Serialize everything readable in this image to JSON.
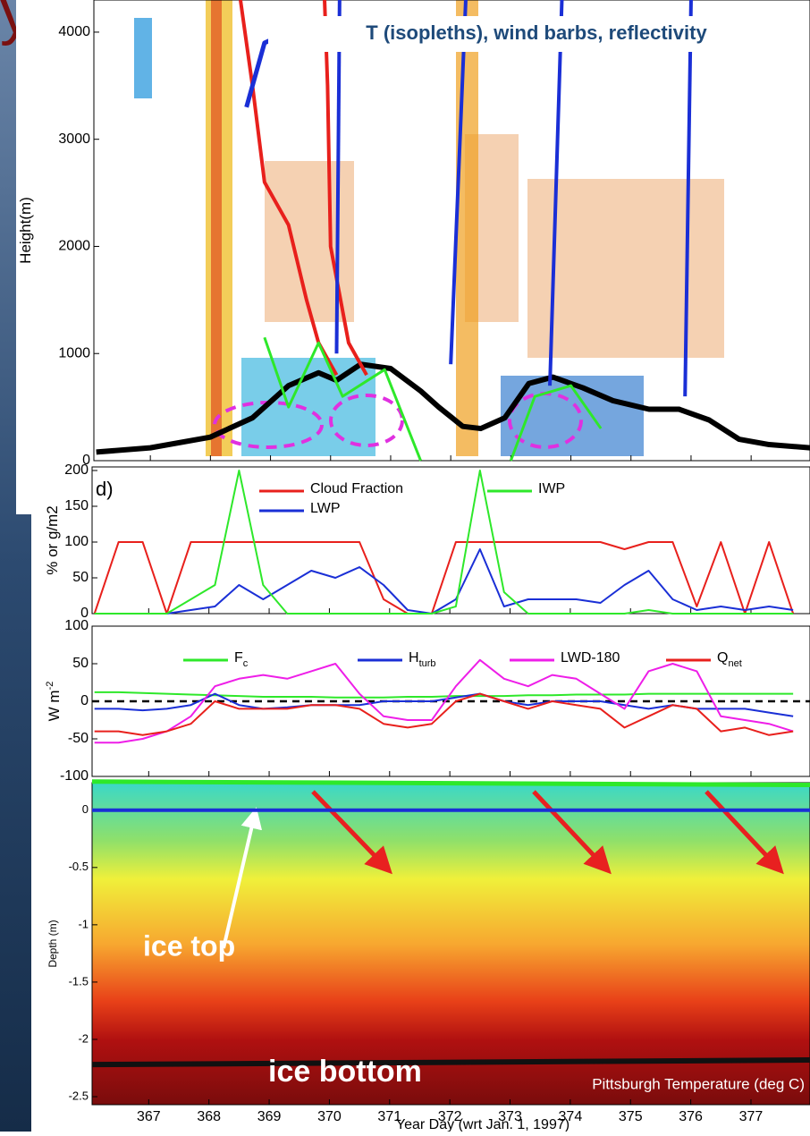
{
  "chart_data": [
    {
      "type": "line",
      "title": "T (isopleths), wind barbs, reflectivity",
      "y_label": "Height(m)",
      "xlim": [
        366.06,
        377.98
      ],
      "xticks": [
        367,
        368,
        369,
        370,
        371,
        372,
        373,
        374,
        375,
        376,
        377
      ],
      "ylim": [
        0,
        4300
      ],
      "yticks": [
        0,
        1000,
        2000,
        3000,
        4000
      ],
      "series": [
        {
          "color": "#000000",
          "width": 6,
          "x": [
            366.1,
            367,
            368,
            368.7,
            369.3,
            369.8,
            370.1,
            370.5,
            371,
            371.5,
            371.8,
            372.2,
            372.5,
            372.9,
            373.3,
            373.7,
            374.2,
            374.7,
            375.3,
            375.8,
            376.3,
            376.8,
            377.3,
            377.98
          ],
          "values": [
            80,
            120,
            220,
            400,
            700,
            820,
            750,
            900,
            860,
            650,
            500,
            320,
            300,
            400,
            720,
            780,
            680,
            560,
            480,
            480,
            380,
            200,
            150,
            120
          ]
        },
        {
          "color": "#e8201c",
          "width": 4,
          "x": [
            368.5,
            368.7,
            368.9,
            369.3,
            369.6,
            369.8,
            370.1
          ],
          "values": [
            4300,
            3500,
            2600,
            2200,
            1500,
            1100,
            800
          ]
        },
        {
          "color": "#e8201c",
          "width": 4,
          "x": [
            369.9,
            369.95,
            370.0,
            370.3,
            370.6
          ],
          "values": [
            4300,
            3500,
            2000,
            1100,
            800
          ]
        },
        {
          "color": "#1a2fd6",
          "width": 5,
          "x": [
            368.6,
            368.9,
            369.5
          ],
          "values": [
            3300,
            3900,
            4050
          ]
        },
        {
          "color": "#1a2fd6",
          "width": 4,
          "x": [
            370.15,
            370.1
          ],
          "values": [
            4300,
            1000
          ]
        },
        {
          "color": "#1a2fd6",
          "width": 4,
          "x": [
            372.25,
            372.0
          ],
          "values": [
            4300,
            900
          ]
        },
        {
          "color": "#1a2fd6",
          "width": 4,
          "x": [
            373.85,
            373.65
          ],
          "values": [
            4300,
            700
          ]
        },
        {
          "color": "#1a2fd6",
          "width": 4,
          "x": [
            376.0,
            375.9
          ],
          "values": [
            4300,
            600
          ]
        },
        {
          "color": "#2ee82a",
          "width": 3,
          "x": [
            368.9,
            369.3,
            369.8,
            370.2,
            370.9,
            371.5
          ],
          "values": [
            1150,
            500,
            1100,
            600,
            850,
            0
          ]
        },
        {
          "color": "#2ee82a",
          "width": 3,
          "x": [
            373.0,
            373.4,
            374.0,
            374.5
          ],
          "values": [
            0,
            600,
            700,
            300
          ]
        }
      ]
    },
    {
      "type": "line",
      "panel_label": "d)",
      "y_label": "% or g/m2",
      "xlim": [
        366.06,
        377.98
      ],
      "xticks": [
        367,
        368,
        369,
        370,
        371,
        372,
        373,
        374,
        375,
        376,
        377
      ],
      "ylim": [
        0,
        205
      ],
      "yticks": [
        0,
        50,
        100,
        150,
        200
      ],
      "x": [
        366.1,
        366.5,
        366.9,
        367.3,
        367.7,
        368.1,
        368.5,
        368.9,
        369.3,
        369.7,
        370.1,
        370.5,
        370.9,
        371.3,
        371.7,
        372.1,
        372.5,
        372.9,
        373.3,
        373.7,
        374.1,
        374.5,
        374.9,
        375.3,
        375.7,
        376.1,
        376.5,
        376.9,
        377.3,
        377.7
      ],
      "series": [
        {
          "name": "Cloud Fraction",
          "color": "#e8201c",
          "values": [
            0,
            100,
            100,
            0,
            100,
            100,
            100,
            100,
            100,
            100,
            100,
            100,
            20,
            0,
            0,
            100,
            100,
            100,
            100,
            100,
            100,
            100,
            90,
            100,
            100,
            10,
            100,
            0,
            100,
            0
          ]
        },
        {
          "name": "LWP",
          "color": "#1a2fd6",
          "values": [
            0,
            0,
            0,
            0,
            5,
            10,
            40,
            20,
            40,
            60,
            50,
            65,
            40,
            5,
            0,
            20,
            90,
            10,
            20,
            20,
            20,
            15,
            40,
            60,
            20,
            5,
            10,
            5,
            10,
            5
          ]
        },
        {
          "name": "IWP",
          "color": "#2ee82a",
          "values": [
            0,
            0,
            0,
            0,
            20,
            40,
            200,
            40,
            0,
            0,
            0,
            0,
            0,
            0,
            0,
            10,
            200,
            30,
            0,
            0,
            0,
            0,
            0,
            5,
            0,
            0,
            0,
            0,
            0,
            0
          ]
        }
      ]
    },
    {
      "type": "line",
      "y_label": "W m",
      "y_label_sup": "-2",
      "xlim": [
        366.06,
        377.98
      ],
      "xticks": [
        367,
        368,
        369,
        370,
        371,
        372,
        373,
        374,
        375,
        376,
        377
      ],
      "ylim": [
        -100,
        100
      ],
      "yticks": [
        -100,
        -50,
        0,
        50,
        100
      ],
      "x": [
        366.1,
        366.5,
        366.9,
        367.3,
        367.7,
        368.1,
        368.5,
        368.9,
        369.3,
        369.7,
        370.1,
        370.5,
        370.9,
        371.3,
        371.7,
        372.1,
        372.5,
        372.9,
        373.3,
        373.7,
        374.1,
        374.5,
        374.9,
        375.3,
        375.7,
        376.1,
        376.5,
        376.9,
        377.3,
        377.7
      ],
      "series": [
        {
          "name": "F",
          "sub": "c",
          "color": "#2ee82a",
          "values": [
            12,
            12,
            11,
            10,
            9,
            8,
            7,
            6,
            6,
            6,
            5,
            5,
            5,
            6,
            6,
            7,
            7,
            7,
            8,
            8,
            9,
            9,
            9,
            10,
            10,
            10,
            10,
            10,
            10,
            10
          ]
        },
        {
          "name": "H",
          "sub": "turb",
          "color": "#1a2fd6",
          "values": [
            -10,
            -10,
            -12,
            -10,
            -5,
            10,
            -5,
            -10,
            -8,
            -5,
            -5,
            -5,
            0,
            0,
            0,
            5,
            10,
            0,
            -5,
            0,
            0,
            0,
            -5,
            -10,
            -5,
            -10,
            -10,
            -10,
            -15,
            -20
          ]
        },
        {
          "name": "LWD-180",
          "color": "#ee1ee8",
          "values": [
            -55,
            -55,
            -50,
            -40,
            -20,
            20,
            30,
            35,
            30,
            40,
            50,
            10,
            -20,
            -25,
            -25,
            20,
            55,
            30,
            20,
            35,
            30,
            10,
            -10,
            40,
            50,
            40,
            -20,
            -25,
            -30,
            -40
          ]
        },
        {
          "name": "Q",
          "sub": "net",
          "color": "#e8201c",
          "values": [
            -40,
            -40,
            -45,
            -40,
            -30,
            0,
            -10,
            -10,
            -10,
            -5,
            -5,
            -10,
            -30,
            -35,
            -30,
            0,
            10,
            0,
            -10,
            0,
            -5,
            -10,
            -35,
            -20,
            -5,
            -10,
            -40,
            -35,
            -45,
            -40
          ]
        }
      ]
    },
    {
      "type": "line",
      "y_label": "Depth (m)",
      "x_label": "Year Day (wrt Jan. 1, 1997)",
      "xlim": [
        366.06,
        377.98
      ],
      "xticks": [
        367,
        368,
        369,
        370,
        371,
        372,
        373,
        374,
        375,
        376,
        377
      ],
      "ylim": [
        -2.57,
        0.24
      ],
      "yticks": [
        -2.5,
        -2,
        -1.5,
        -1,
        -0.5,
        0
      ],
      "annotations": [
        "ice top",
        "ice bottom",
        "Pittsburgh Temperature (deg C)"
      ],
      "series": [
        {
          "color": "#2ee82a",
          "width": 5,
          "x": [
            366.06,
            377.98
          ],
          "values": [
            0.25,
            0.22
          ]
        },
        {
          "color": "#1a2fd6",
          "width": 4,
          "x": [
            366.06,
            377.98
          ],
          "values": [
            0,
            0
          ]
        },
        {
          "color": "#111111",
          "width": 6,
          "x": [
            366.06,
            377.98
          ],
          "values": [
            -2.22,
            -2.18
          ]
        }
      ]
    }
  ]
}
